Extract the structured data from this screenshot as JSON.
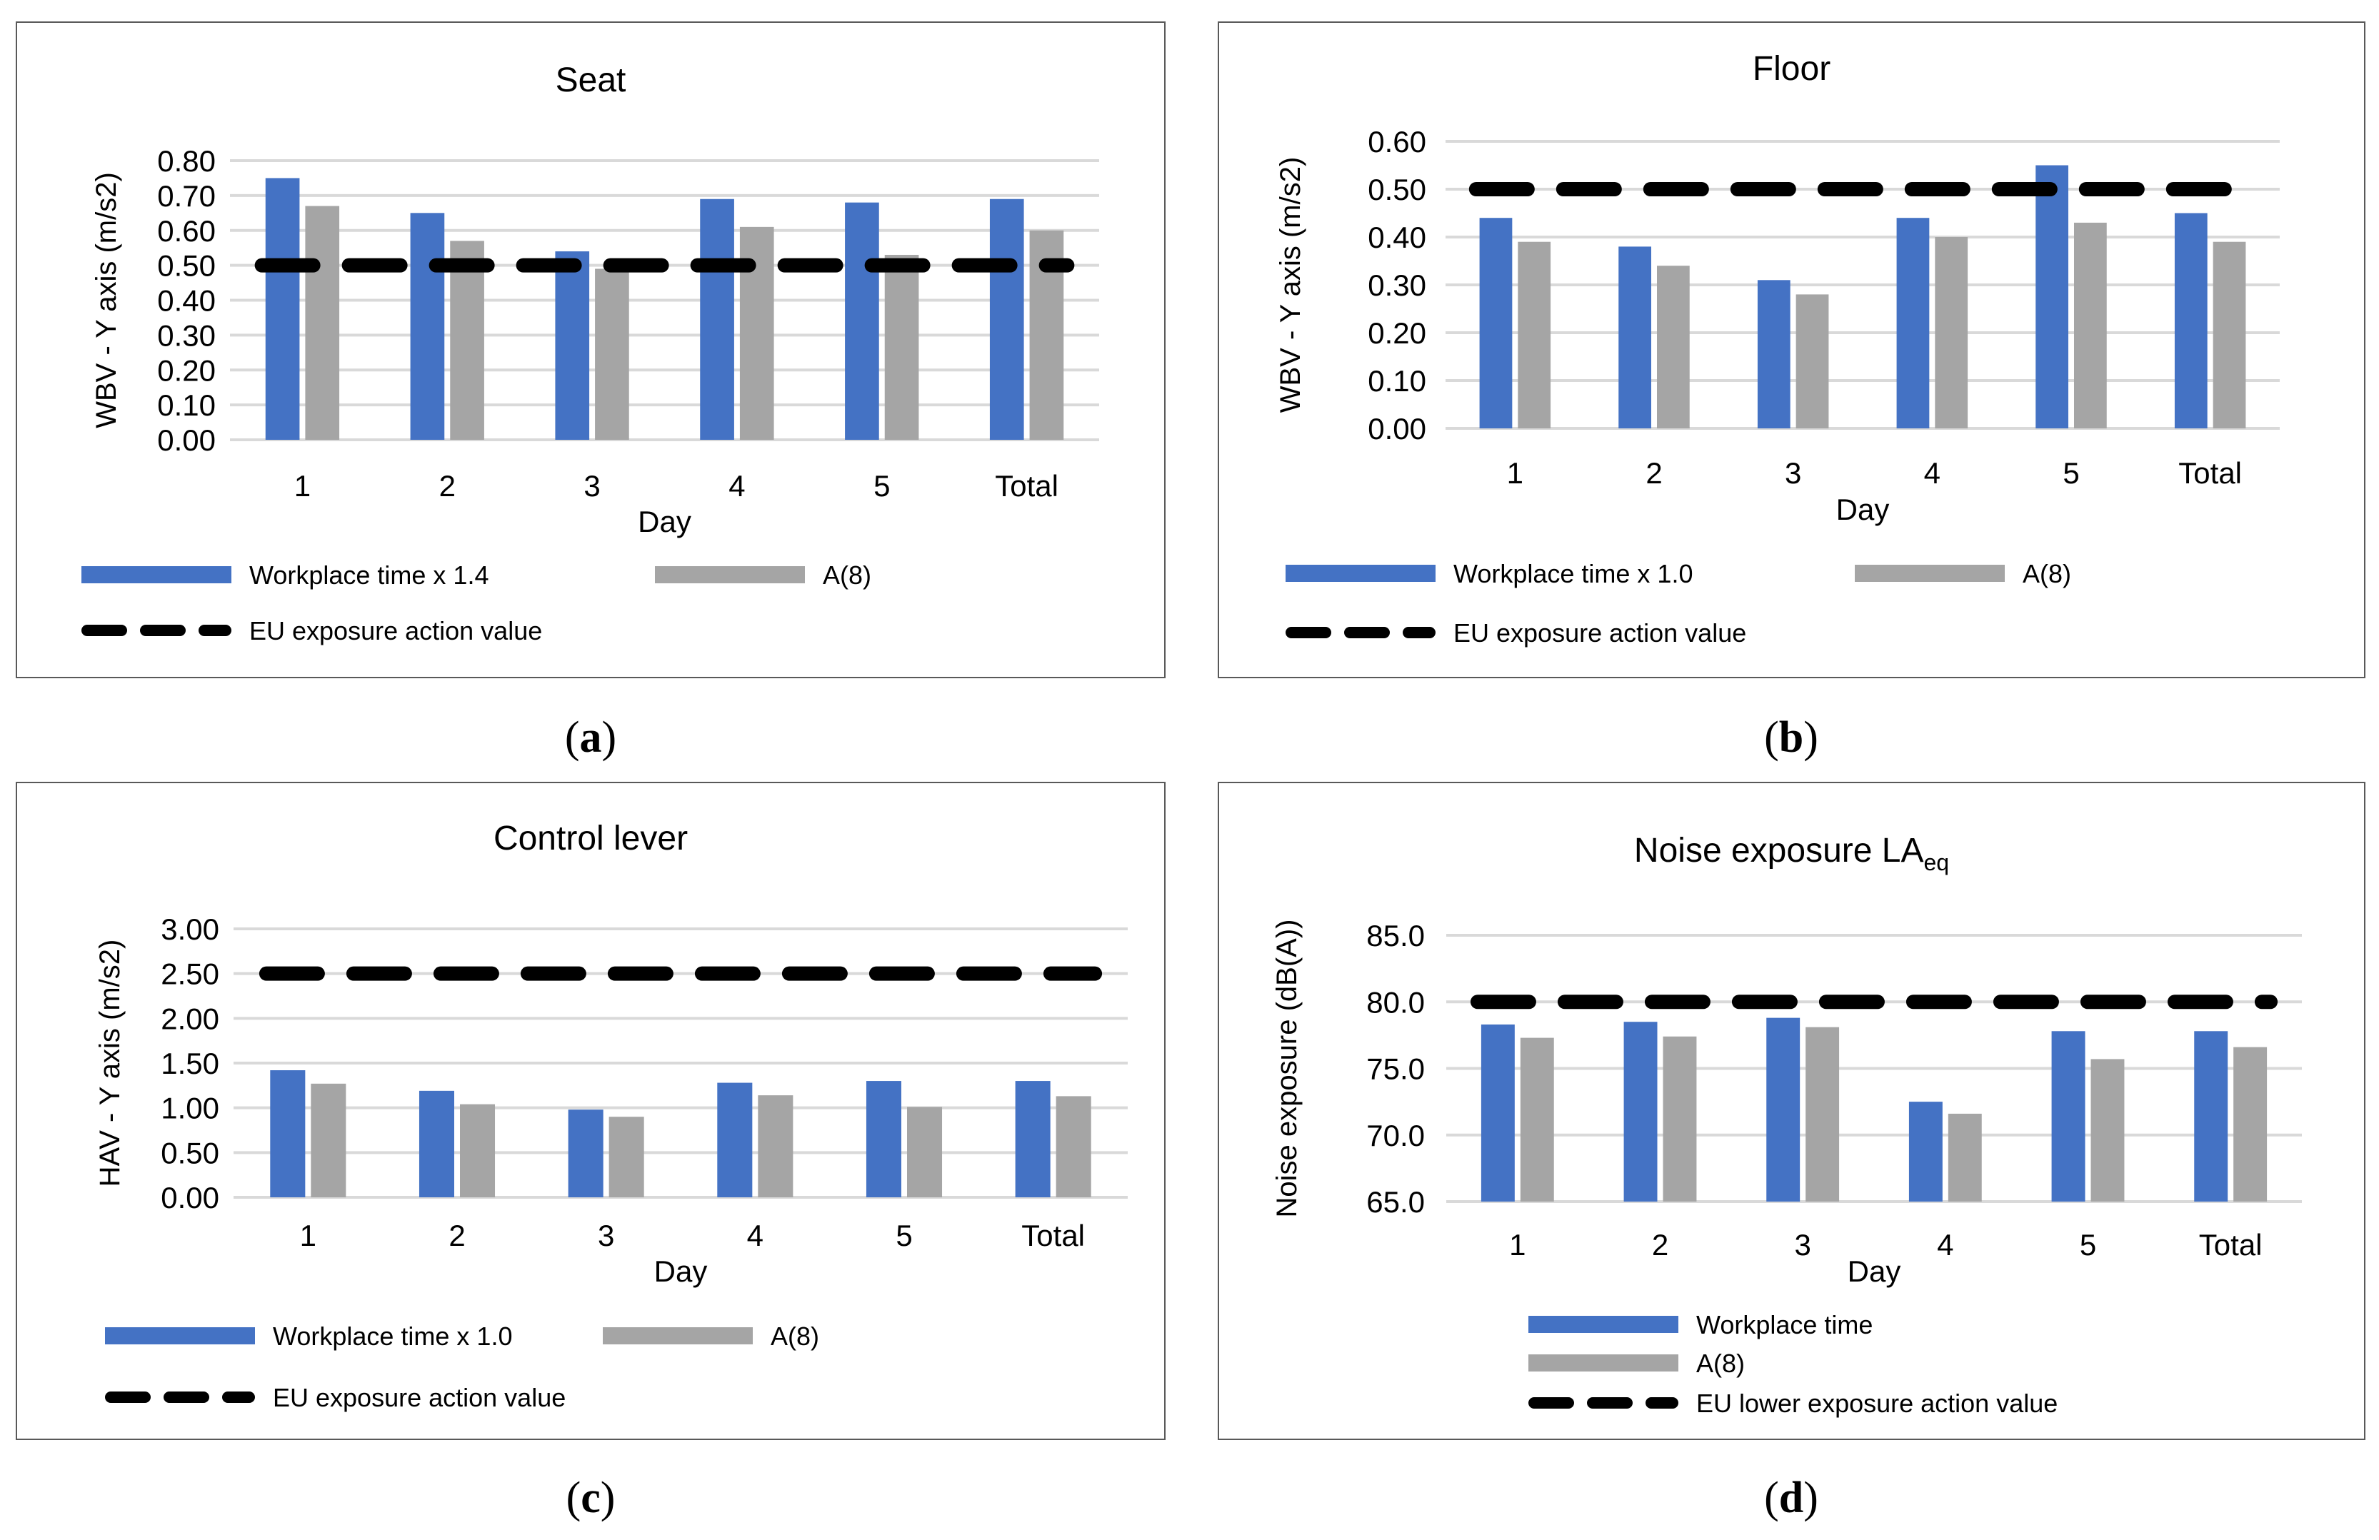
{
  "colors": {
    "workplace": "#4472C4",
    "a8": "#A5A5A5",
    "eu": "#000000",
    "grid": "#D9D9D9",
    "border": "#595959",
    "text": "#000000"
  },
  "captions": [
    "a",
    "b",
    "c",
    "d"
  ],
  "chart_data": [
    {
      "type": "bar",
      "title": "Seat",
      "xlabel": "Day",
      "ylabel": "WBV - Y axis (m/s2)",
      "categories": [
        "1",
        "2",
        "3",
        "4",
        "5",
        "Total"
      ],
      "ylim": [
        0,
        0.8
      ],
      "yticks": [
        "0.00",
        "0.10",
        "0.20",
        "0.30",
        "0.40",
        "0.50",
        "0.60",
        "0.70",
        "0.80"
      ],
      "series": [
        {
          "name": "Workplace time x 1.4",
          "kind": "bar",
          "color": "#4472C4",
          "values": [
            0.75,
            0.65,
            0.54,
            0.69,
            0.68,
            0.69
          ]
        },
        {
          "name": "A(8)",
          "kind": "bar",
          "color": "#A5A5A5",
          "values": [
            0.67,
            0.57,
            0.49,
            0.61,
            0.53,
            0.6
          ]
        },
        {
          "name": "EU exposure action value",
          "kind": "line",
          "color": "#000000",
          "values": [
            0.5,
            0.5,
            0.5,
            0.5,
            0.5,
            0.5
          ]
        }
      ],
      "legend": "bottom"
    },
    {
      "type": "bar",
      "title": "Floor",
      "xlabel": "Day",
      "ylabel": "WBV - Y axis (m/s2)",
      "categories": [
        "1",
        "2",
        "3",
        "4",
        "5",
        "Total"
      ],
      "ylim": [
        0,
        0.6
      ],
      "yticks": [
        "0.00",
        "0.10",
        "0.20",
        "0.30",
        "0.40",
        "0.50",
        "0.60"
      ],
      "series": [
        {
          "name": "Workplace time x 1.0",
          "kind": "bar",
          "color": "#4472C4",
          "values": [
            0.44,
            0.38,
            0.31,
            0.44,
            0.55,
            0.45
          ]
        },
        {
          "name": "A(8)",
          "kind": "bar",
          "color": "#A5A5A5",
          "values": [
            0.39,
            0.34,
            0.28,
            0.4,
            0.43,
            0.39
          ]
        },
        {
          "name": "EU exposure action value",
          "kind": "line",
          "color": "#000000",
          "values": [
            0.5,
            0.5,
            0.5,
            0.5,
            0.5,
            0.5
          ]
        }
      ],
      "legend": "bottom"
    },
    {
      "type": "bar",
      "title": "Control lever",
      "xlabel": "Day",
      "ylabel": "HAV - Y axis (m/s2)",
      "categories": [
        "1",
        "2",
        "3",
        "4",
        "5",
        "Total"
      ],
      "ylim": [
        0,
        3
      ],
      "yticks": [
        "0.00",
        "0.50",
        "1.00",
        "1.50",
        "2.00",
        "2.50",
        "3.00"
      ],
      "series": [
        {
          "name": "Workplace time x 1.0",
          "kind": "bar",
          "color": "#4472C4",
          "values": [
            1.42,
            1.19,
            0.98,
            1.28,
            1.3,
            1.3
          ]
        },
        {
          "name": "A(8)",
          "kind": "bar",
          "color": "#A5A5A5",
          "values": [
            1.27,
            1.04,
            0.9,
            1.14,
            1.01,
            1.13
          ]
        },
        {
          "name": "EU exposure action value",
          "kind": "line",
          "color": "#000000",
          "values": [
            2.5,
            2.5,
            2.5,
            2.5,
            2.5,
            2.5
          ]
        }
      ],
      "legend": "bottom"
    },
    {
      "type": "bar",
      "title": "Noise exposure LA",
      "title_sub": "eq",
      "xlabel": "Day",
      "ylabel": "Noise exposure (dB(A))",
      "categories": [
        "1",
        "2",
        "3",
        "4",
        "5",
        "Total"
      ],
      "ylim": [
        65,
        85
      ],
      "yticks": [
        "65.0",
        "70.0",
        "75.0",
        "80.0",
        "85.0"
      ],
      "series": [
        {
          "name": "Workplace time",
          "kind": "bar",
          "color": "#4472C4",
          "values": [
            78.3,
            78.5,
            78.8,
            72.5,
            77.8,
            77.8
          ]
        },
        {
          "name": "A(8)",
          "kind": "bar",
          "color": "#A5A5A5",
          "values": [
            77.3,
            77.4,
            78.1,
            71.6,
            75.7,
            76.6
          ]
        },
        {
          "name": "EU lower exposure action value",
          "kind": "line",
          "color": "#000000",
          "values": [
            80,
            80,
            80,
            80,
            80,
            80
          ]
        }
      ],
      "legend": "bottom"
    }
  ]
}
